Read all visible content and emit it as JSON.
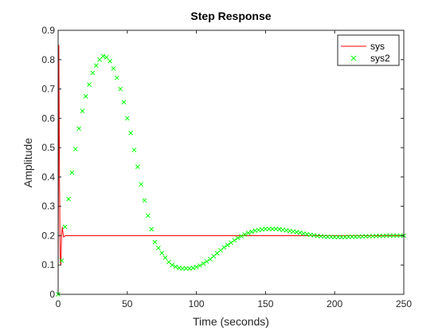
{
  "chart_data": {
    "type": "line",
    "title": "Step Response",
    "xlabel": "Time (seconds)",
    "ylabel": "Amplitude",
    "xlim": [
      0,
      250
    ],
    "ylim": [
      0,
      0.9
    ],
    "xticks": [
      0,
      50,
      100,
      150,
      200,
      250
    ],
    "yticks": [
      0,
      0.1,
      0.2,
      0.3,
      0.4,
      0.5,
      0.6,
      0.7,
      0.8,
      0.9
    ],
    "xtick_labels": [
      "0",
      "50",
      "100",
      "150",
      "200",
      "250"
    ],
    "ytick_labels": [
      "0",
      "0.1",
      "0.2",
      "0.3",
      "0.4",
      "0.5",
      "0.6",
      "0.7",
      "0.8",
      "0.9"
    ],
    "grid": false,
    "legend_position": "top-right",
    "series": [
      {
        "name": "sys",
        "style": "line",
        "color": "#ff0000",
        "x": [
          0,
          0.5,
          1,
          1.5,
          2,
          2.5,
          3,
          3.5,
          4,
          5,
          6,
          8,
          10,
          50,
          100,
          150,
          200,
          250
        ],
        "y": [
          0,
          0.85,
          0.38,
          0.12,
          0.1,
          0.2,
          0.23,
          0.21,
          0.195,
          0.2,
          0.2,
          0.2,
          0.2,
          0.2,
          0.2,
          0.2,
          0.2,
          0.2
        ]
      },
      {
        "name": "sys2",
        "style": "marker",
        "marker": "x",
        "color": "#00ff00",
        "x": [
          0,
          2.5,
          5,
          7.5,
          10,
          12.5,
          15,
          17.5,
          20,
          22.5,
          25,
          27.5,
          30,
          32.5,
          35,
          37.5,
          40,
          42.5,
          45,
          47.5,
          50,
          52.5,
          55,
          57.5,
          60,
          62.5,
          65,
          67.5,
          70,
          72.5,
          75,
          77.5,
          80,
          82.5,
          85,
          87.5,
          90,
          92.5,
          95,
          97.5,
          100,
          102.5,
          105,
          107.5,
          110,
          112.5,
          115,
          117.5,
          120,
          122.5,
          125,
          127.5,
          130,
          132.5,
          135,
          137.5,
          140,
          142.5,
          145,
          147.5,
          150,
          152.5,
          155,
          157.5,
          160,
          162.5,
          165,
          167.5,
          170,
          172.5,
          175,
          177.5,
          180,
          182.5,
          185,
          187.5,
          190,
          192.5,
          195,
          197.5,
          200,
          202.5,
          205,
          207.5,
          210,
          212.5,
          215,
          217.5,
          220,
          222.5,
          225,
          227.5,
          230,
          232.5,
          235,
          237.5,
          240,
          242.5,
          245,
          247.5,
          250
        ],
        "y": [
          0,
          0.115,
          0.23,
          0.325,
          0.415,
          0.495,
          0.565,
          0.625,
          0.675,
          0.715,
          0.755,
          0.78,
          0.8,
          0.812,
          0.808,
          0.795,
          0.77,
          0.738,
          0.7,
          0.655,
          0.6,
          0.55,
          0.492,
          0.435,
          0.375,
          0.32,
          0.268,
          0.222,
          0.178,
          0.158,
          0.141,
          0.125,
          0.11,
          0.1,
          0.094,
          0.09,
          0.088,
          0.088,
          0.088,
          0.09,
          0.093,
          0.098,
          0.105,
          0.112,
          0.12,
          0.13,
          0.14,
          0.15,
          0.16,
          0.168,
          0.176,
          0.184,
          0.192,
          0.198,
          0.204,
          0.209,
          0.213,
          0.217,
          0.219,
          0.221,
          0.223,
          0.223,
          0.223,
          0.223,
          0.222,
          0.22,
          0.218,
          0.216,
          0.214,
          0.212,
          0.21,
          0.207,
          0.205,
          0.203,
          0.201,
          0.199,
          0.198,
          0.197,
          0.196,
          0.196,
          0.195,
          0.195,
          0.195,
          0.195,
          0.196,
          0.196,
          0.196,
          0.197,
          0.197,
          0.198,
          0.198,
          0.198,
          0.199,
          0.199,
          0.199,
          0.2,
          0.2,
          0.2,
          0.2,
          0.2,
          0.2
        ]
      }
    ]
  }
}
